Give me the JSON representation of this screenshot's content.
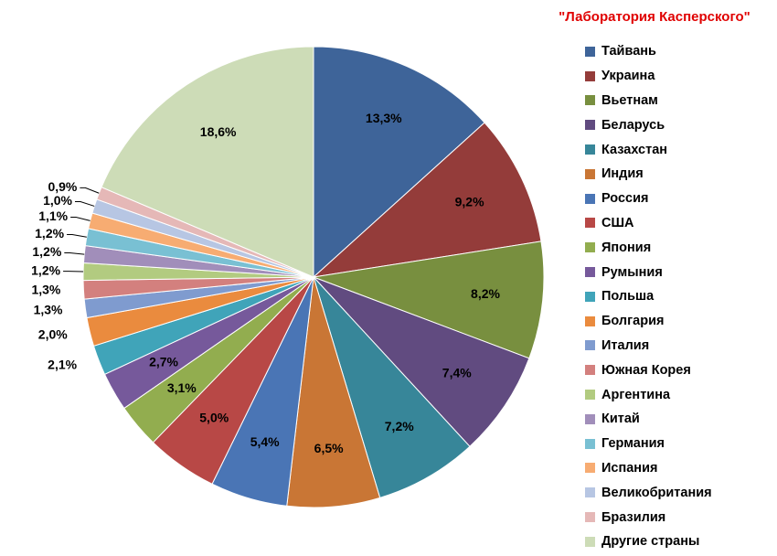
{
  "chart_data": {
    "type": "pie",
    "title": "\"Лаборатория Касперского\"",
    "legend_position": "right",
    "slices": [
      {
        "label": "Тайвань",
        "value": 13.3,
        "value_label": "13,3%",
        "color": "#3e6499"
      },
      {
        "label": "Украина",
        "value": 9.2,
        "value_label": "9,2%",
        "color": "#943c3a"
      },
      {
        "label": "Вьетнам",
        "value": 8.2,
        "value_label": "8,2%",
        "color": "#788f3f"
      },
      {
        "label": "Беларусь",
        "value": 7.4,
        "value_label": "7,4%",
        "color": "#614b80"
      },
      {
        "label": "Казахстан",
        "value": 7.2,
        "value_label": "7,2%",
        "color": "#378699"
      },
      {
        "label": "Индия",
        "value": 6.5,
        "value_label": "6,5%",
        "color": "#c97635"
      },
      {
        "label": "Россия",
        "value": 5.4,
        "value_label": "5,4%",
        "color": "#4a75b5"
      },
      {
        "label": "США",
        "value": 5.0,
        "value_label": "5,0%",
        "color": "#b84846"
      },
      {
        "label": "Япония",
        "value": 3.1,
        "value_label": "3,1%",
        "color": "#92ad4f"
      },
      {
        "label": "Румыния",
        "value": 2.7,
        "value_label": "2,7%",
        "color": "#76599b"
      },
      {
        "label": "Польша",
        "value": 2.1,
        "value_label": "2,1%",
        "color": "#40a4b9"
      },
      {
        "label": "Болгария",
        "value": 2.0,
        "value_label": "2,0%",
        "color": "#ea8b3e"
      },
      {
        "label": "Италия",
        "value": 1.3,
        "value_label": "1,3%",
        "color": "#7f9bcf"
      },
      {
        "label": "Южная Корея",
        "value": 1.3,
        "value_label": "1,3%",
        "color": "#d3807e"
      },
      {
        "label": "Аргентина",
        "value": 1.2,
        "value_label": "1,2%",
        "color": "#b2cb80"
      },
      {
        "label": "Китай",
        "value": 1.2,
        "value_label": "1,2%",
        "color": "#a18eba"
      },
      {
        "label": "Германия",
        "value": 1.2,
        "value_label": "1,2%",
        "color": "#79c0d3"
      },
      {
        "label": "Испания",
        "value": 1.1,
        "value_label": "1,1%",
        "color": "#f7ac72"
      },
      {
        "label": "Великобритания",
        "value": 1.0,
        "value_label": "1,0%",
        "color": "#b7c6e3"
      },
      {
        "label": "Бразилия",
        "value": 0.9,
        "value_label": "0,9%",
        "color": "#e5b8b7"
      },
      {
        "label": "Другие страны",
        "value": 18.6,
        "value_label": "18,6%",
        "color": "#cddcb7"
      }
    ]
  }
}
